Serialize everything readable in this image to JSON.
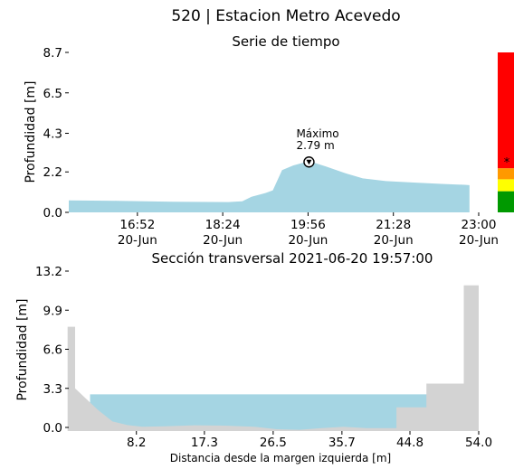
{
  "page": {
    "title": "520 | Estacion Metro Acevedo"
  },
  "chart_data": [
    {
      "type": "area",
      "title": "Serie de tiempo",
      "xlabel": "",
      "ylabel": "Profundidad [m]",
      "ylim": [
        0,
        8.7
      ],
      "yticks": [
        "0.0",
        "2.2",
        "4.3",
        "6.5",
        "8.7"
      ],
      "xlim": [
        "2021-06-20 15:38",
        "2021-06-20 23:00"
      ],
      "xticks": [
        {
          "t": "2021-06-20 16:52",
          "line1": "16:52",
          "line2": "20-Jun"
        },
        {
          "t": "2021-06-20 18:24",
          "line1": "18:24",
          "line2": "20-Jun"
        },
        {
          "t": "2021-06-20 19:56",
          "line1": "19:56",
          "line2": "20-Jun"
        },
        {
          "t": "2021-06-20 21:28",
          "line1": "21:28",
          "line2": "20-Jun"
        },
        {
          "t": "2021-06-20 23:00",
          "line1": "23:00",
          "line2": "20-Jun"
        }
      ],
      "series": [
        {
          "color": "#a5d5e3",
          "points": [
            [
              "2021-06-20 15:38",
              0.65
            ],
            [
              "2021-06-20 16:30",
              0.63
            ],
            [
              "2021-06-20 17:30",
              0.58
            ],
            [
              "2021-06-20 18:30",
              0.56
            ],
            [
              "2021-06-20 18:45",
              0.6
            ],
            [
              "2021-06-20 18:55",
              0.85
            ],
            [
              "2021-06-20 19:10",
              1.05
            ],
            [
              "2021-06-20 19:18",
              1.2
            ],
            [
              "2021-06-20 19:28",
              2.3
            ],
            [
              "2021-06-20 19:40",
              2.55
            ],
            [
              "2021-06-20 19:57",
              2.79
            ],
            [
              "2021-06-20 20:15",
              2.5
            ],
            [
              "2021-06-20 20:35",
              2.15
            ],
            [
              "2021-06-20 20:55",
              1.85
            ],
            [
              "2021-06-20 21:20",
              1.7
            ],
            [
              "2021-06-20 21:50",
              1.62
            ],
            [
              "2021-06-20 22:20",
              1.55
            ],
            [
              "2021-06-20 22:45",
              1.5
            ],
            [
              "2021-06-20 22:50",
              1.48
            ]
          ]
        }
      ],
      "annotation": {
        "t": "2021-06-20 19:57",
        "value": 2.79,
        "label_line1": "Máximo",
        "label_line2": "2.79 m"
      },
      "level_bar": {
        "segments": [
          {
            "color": "#009900",
            "from": 0,
            "to": 1.15
          },
          {
            "color": "#ffff00",
            "from": 1.15,
            "to": 1.8
          },
          {
            "color": "#ff9900",
            "from": 1.8,
            "to": 2.4
          },
          {
            "color": "#ff0000",
            "from": 2.4,
            "to": 8.7
          }
        ],
        "marker_value": 2.79,
        "marker_symbol": "*"
      }
    },
    {
      "type": "area",
      "title": "Sección transversal 2021-06-20 19:57:00",
      "xlabel": "Distancia desde la margen izquierda [m]",
      "ylabel": "Profundidad [m]",
      "xlim": [
        0,
        54.0
      ],
      "ylim": [
        0,
        13.2
      ],
      "xticks": [
        "8.2",
        "17.3",
        "26.5",
        "35.7",
        "44.8",
        "54.0"
      ],
      "yticks": [
        "0.0",
        "3.3",
        "6.6",
        "9.9",
        "13.2"
      ],
      "water_level": 2.79,
      "water_color": "#a5d5e3",
      "ground_color": "#d3d3d3",
      "water_x_range": [
        2.0,
        47.6
      ],
      "terrain": [
        [
          -1.0,
          8.5
        ],
        [
          0.0,
          8.5
        ],
        [
          0.0,
          3.3
        ],
        [
          1.5,
          2.4
        ],
        [
          3.0,
          1.5
        ],
        [
          5.0,
          0.5
        ],
        [
          7.0,
          0.2
        ],
        [
          9.0,
          0.05
        ],
        [
          12.0,
          0.1
        ],
        [
          16.0,
          0.18
        ],
        [
          20.0,
          0.15
        ],
        [
          24.0,
          0.05
        ],
        [
          27.0,
          -0.15
        ],
        [
          30.0,
          -0.2
        ],
        [
          33.0,
          -0.05
        ],
        [
          36.0,
          0.05
        ],
        [
          39.0,
          -0.05
        ],
        [
          43.0,
          -0.05
        ],
        [
          43.0,
          1.7
        ],
        [
          47.0,
          1.7
        ],
        [
          47.0,
          3.7
        ],
        [
          52.0,
          3.7
        ],
        [
          52.0,
          12.0
        ],
        [
          54.0,
          12.0
        ]
      ]
    }
  ]
}
